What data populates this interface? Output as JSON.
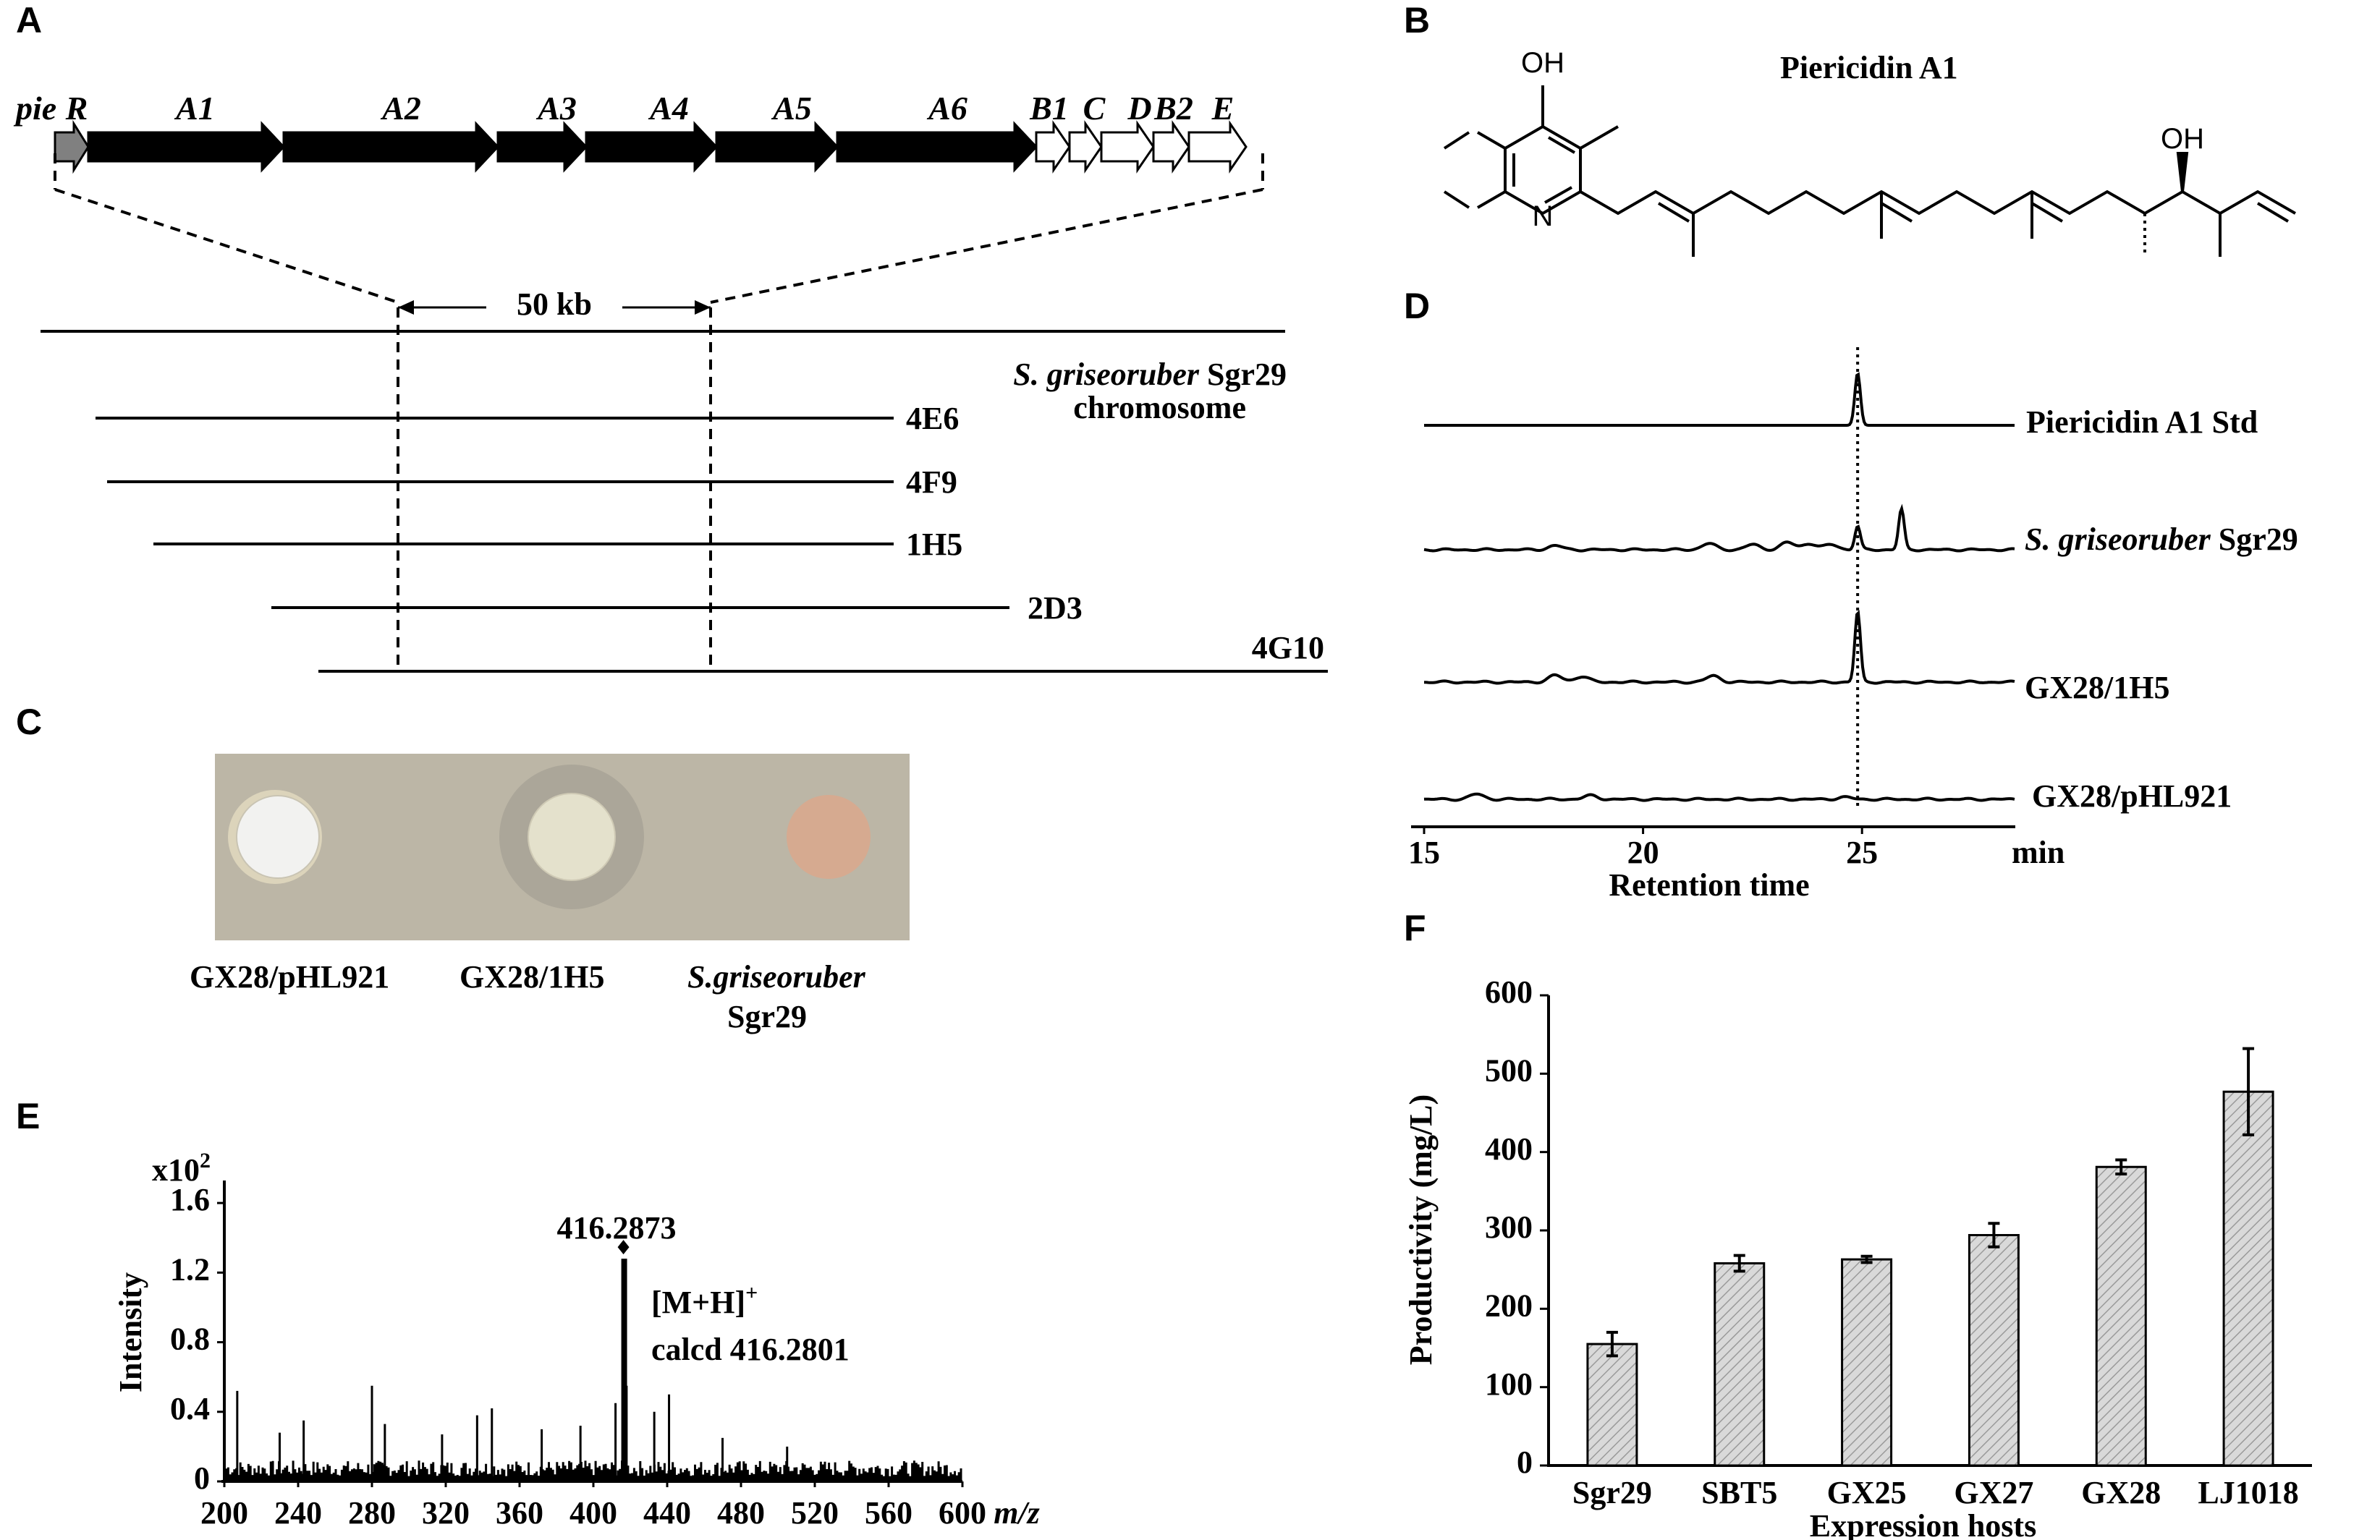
{
  "panels": {
    "A": "A",
    "B": "B",
    "C": "C",
    "D": "D",
    "E": "E",
    "F": "F"
  },
  "panel_a": {
    "cluster_prefix": "pie",
    "genes": [
      "R",
      "A1",
      "A2",
      "A3",
      "A4",
      "A5",
      "A6",
      "B1",
      "C",
      "D",
      "B2",
      "E"
    ],
    "distance_label": "50 kb",
    "chromosome_species": "S. griseoruber",
    "chromosome_strain": "Sgr29",
    "chromosome_word": "chromosome",
    "clones": [
      "4E6",
      "4F9",
      "1H5",
      "2D3",
      "4G10"
    ]
  },
  "panel_b": {
    "compound_name": "Piericidin A1",
    "atom_labels": [
      "OH",
      "OH",
      "N"
    ]
  },
  "panel_c": {
    "sample_labels": [
      "GX28/pHL921",
      "GX28/1H5"
    ],
    "species_label": "S.griseoruber",
    "strain_label": "Sgr29"
  },
  "colors": {
    "bar_fill": "#d9d9d9",
    "gene_grey": "#808080",
    "plate_bg": "#bcb6a6"
  },
  "chart_data": [
    {
      "panel": "D",
      "type": "line",
      "xlabel": "Retention time",
      "x_unit": "min",
      "xlim": [
        15,
        28.5
      ],
      "xticks": [
        15,
        20,
        25
      ],
      "marker_line_x": 24.9,
      "series": [
        {
          "name": "Piericidin A1 Std",
          "peaks": [
            [
              24.9,
              1.0
            ]
          ]
        },
        {
          "species": "S. griseoruber",
          "strain": "Sgr29",
          "peaks": [
            [
              18,
              0.08
            ],
            [
              21.5,
              0.12
            ],
            [
              22.5,
              0.1
            ],
            [
              23.3,
              0.14
            ],
            [
              23.8,
              0.12
            ],
            [
              24.3,
              0.1
            ],
            [
              24.9,
              0.45
            ],
            [
              25.9,
              0.78
            ]
          ]
        },
        {
          "name": "GX28/1H5",
          "peaks": [
            [
              18.0,
              0.13
            ],
            [
              18.6,
              0.11
            ],
            [
              21.6,
              0.12
            ],
            [
              24.9,
              1.35
            ]
          ]
        },
        {
          "name": "GX28/pHL921",
          "peaks": [
            [
              16.2,
              0.1
            ],
            [
              18.8,
              0.07
            ],
            [
              24.6,
              0.04
            ]
          ]
        }
      ]
    },
    {
      "panel": "E",
      "type": "bar",
      "xlabel": "m/z",
      "ylabel": "Intensity",
      "y_multiplier": "x10",
      "y_multiplier_exp": "2",
      "xlim": [
        200,
        600
      ],
      "ylim": [
        0,
        1.8
      ],
      "xticks": [
        200,
        240,
        280,
        320,
        360,
        400,
        440,
        480,
        520,
        560,
        600
      ],
      "yticks": [
        "0",
        "0.4",
        "0.8",
        "1.2",
        "1.6"
      ],
      "main_peak": {
        "x": 416.2873,
        "y": 1.28,
        "label": "416.2873"
      },
      "annotation_ion": "[M+H]",
      "annotation_ion_charge": "+",
      "annotation_calcd": "calcd  416.2801",
      "tall_peaks": [
        [
          207,
          0.52
        ],
        [
          230,
          0.28
        ],
        [
          243,
          0.35
        ],
        [
          280,
          0.55
        ],
        [
          287,
          0.33
        ],
        [
          318,
          0.27
        ],
        [
          337,
          0.38
        ],
        [
          345,
          0.42
        ],
        [
          372,
          0.3
        ],
        [
          393,
          0.32
        ],
        [
          412,
          0.45
        ],
        [
          418,
          0.55
        ],
        [
          433,
          0.4
        ],
        [
          441,
          0.5
        ],
        [
          470,
          0.25
        ],
        [
          505,
          0.2
        ]
      ]
    },
    {
      "panel": "F",
      "type": "bar",
      "title": "",
      "xlabel": "Expression hosts",
      "ylabel": "Productivity (mg/L)",
      "categories": [
        "Sgr29",
        "SBT5",
        "GX25",
        "GX27",
        "GX28",
        "LJ1018"
      ],
      "values": [
        155,
        258,
        263,
        294,
        381,
        477
      ],
      "errors": [
        15,
        10,
        4,
        15,
        9,
        55
      ],
      "ylim": [
        0,
        600
      ],
      "yticks": [
        0,
        100,
        200,
        300,
        400,
        500,
        600
      ]
    }
  ]
}
